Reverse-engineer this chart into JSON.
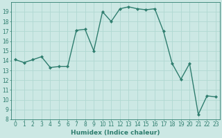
{
  "x": [
    0,
    1,
    2,
    3,
    4,
    5,
    6,
    7,
    8,
    9,
    10,
    11,
    12,
    13,
    14,
    15,
    16,
    17,
    18,
    19,
    20,
    21,
    22,
    23
  ],
  "y": [
    14.1,
    13.8,
    14.1,
    14.4,
    13.3,
    13.4,
    13.4,
    17.1,
    17.2,
    15.0,
    19.0,
    18.0,
    19.3,
    19.5,
    19.3,
    19.2,
    19.3,
    17.0,
    13.7,
    12.1,
    13.7,
    8.5,
    10.4,
    10.3
  ],
  "line_color": "#2e7d6e",
  "marker": "D",
  "markersize": 2.2,
  "linewidth": 1.0,
  "bg_color": "#cce8e4",
  "grid_color": "#b0d8d2",
  "xlabel": "Humidex (Indice chaleur)",
  "xlim": [
    -0.5,
    23.5
  ],
  "ylim": [
    8,
    20
  ],
  "yticks": [
    8,
    9,
    10,
    11,
    12,
    13,
    14,
    15,
    16,
    17,
    18,
    19
  ],
  "xticks": [
    0,
    1,
    2,
    3,
    4,
    5,
    6,
    7,
    8,
    9,
    10,
    11,
    12,
    13,
    14,
    15,
    16,
    17,
    18,
    19,
    20,
    21,
    22,
    23
  ],
  "tick_color": "#2e7d6e",
  "label_color": "#2e7d6e",
  "tick_fontsize": 5.5,
  "xlabel_fontsize": 6.5
}
